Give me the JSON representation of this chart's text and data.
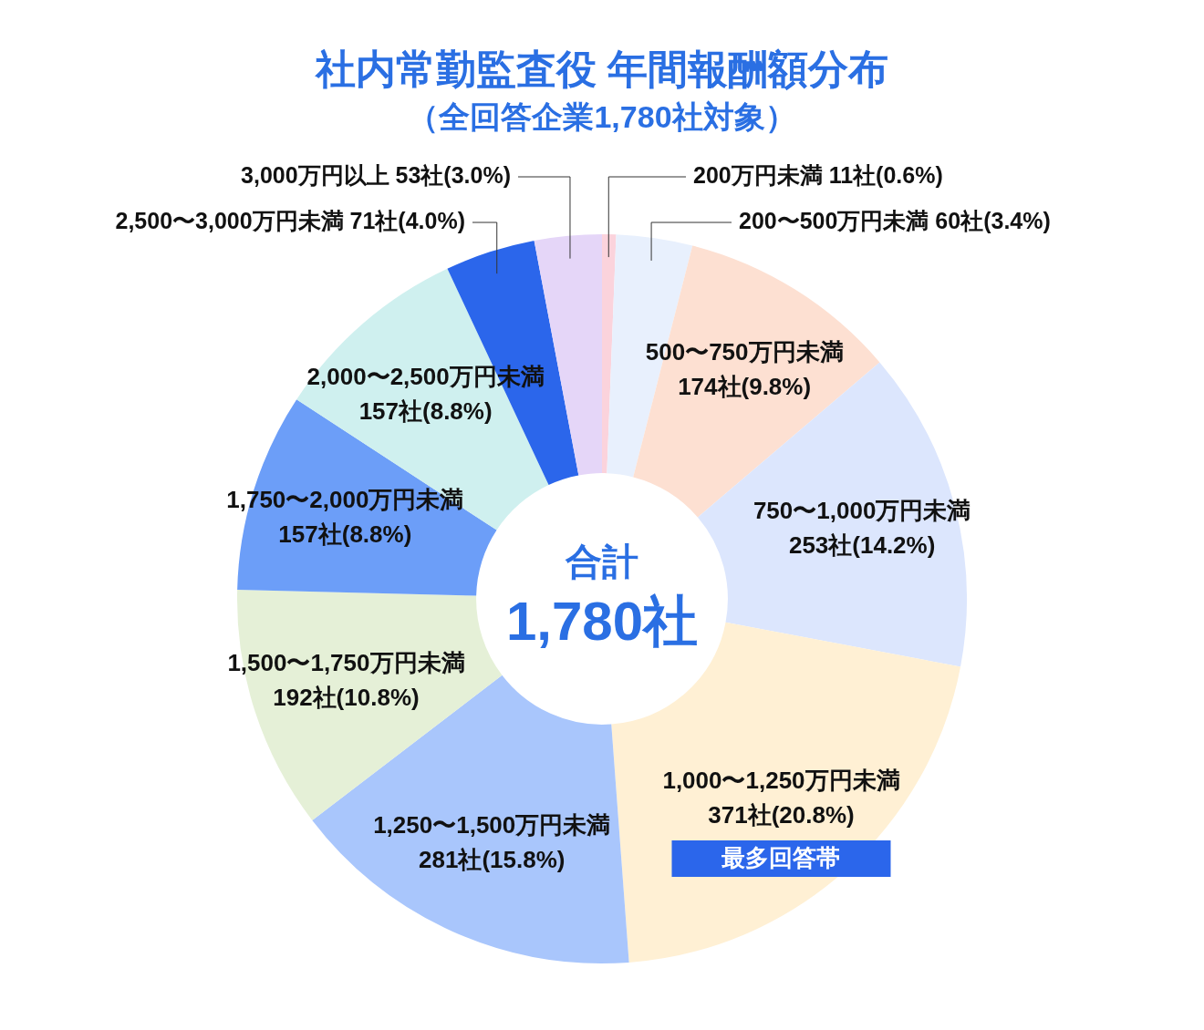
{
  "chart_data": {
    "type": "donut",
    "title": "社内常勤監査役 年間報酬額分布",
    "subtitle": "（全回答企業1,780社対象）",
    "categories": [
      "200万円未満",
      "200〜500万円未満",
      "500〜750万円未満",
      "750〜1,000万円未満",
      "1,000〜1,250万円未満",
      "1,250〜1,500万円未満",
      "1,500〜1,750万円未満",
      "1,750〜2,000万円未満",
      "2,000〜2,500万円未満",
      "2,500〜3,000万円未満",
      "3,000万円以上"
    ],
    "values": [
      11,
      60,
      174,
      253,
      371,
      281,
      192,
      157,
      157,
      71,
      53
    ],
    "value_labels": [
      "11社(0.6%)",
      "60社(3.4%)",
      "174社(9.8%)",
      "253社(14.2%)",
      "371社(20.8%)",
      "281社(15.8%)",
      "192社(10.8%)",
      "157社(8.8%)",
      "157社(8.8%)",
      "71社(4.0%)",
      "53社(3.0%)"
    ],
    "colors": [
      "#fbd3dc",
      "#e8f0fd",
      "#fde0d2",
      "#dce6fd",
      "#fff0d4",
      "#a9c6fc",
      "#e5f0d7",
      "#6c9ef8",
      "#cff0ef",
      "#2b66eb",
      "#e5d6f8"
    ],
    "annotations": [
      "合計",
      "1,780社",
      {
        "text": "最多回答帯",
        "x": "1,000〜1,250万円未満"
      }
    ],
    "legend": false
  }
}
